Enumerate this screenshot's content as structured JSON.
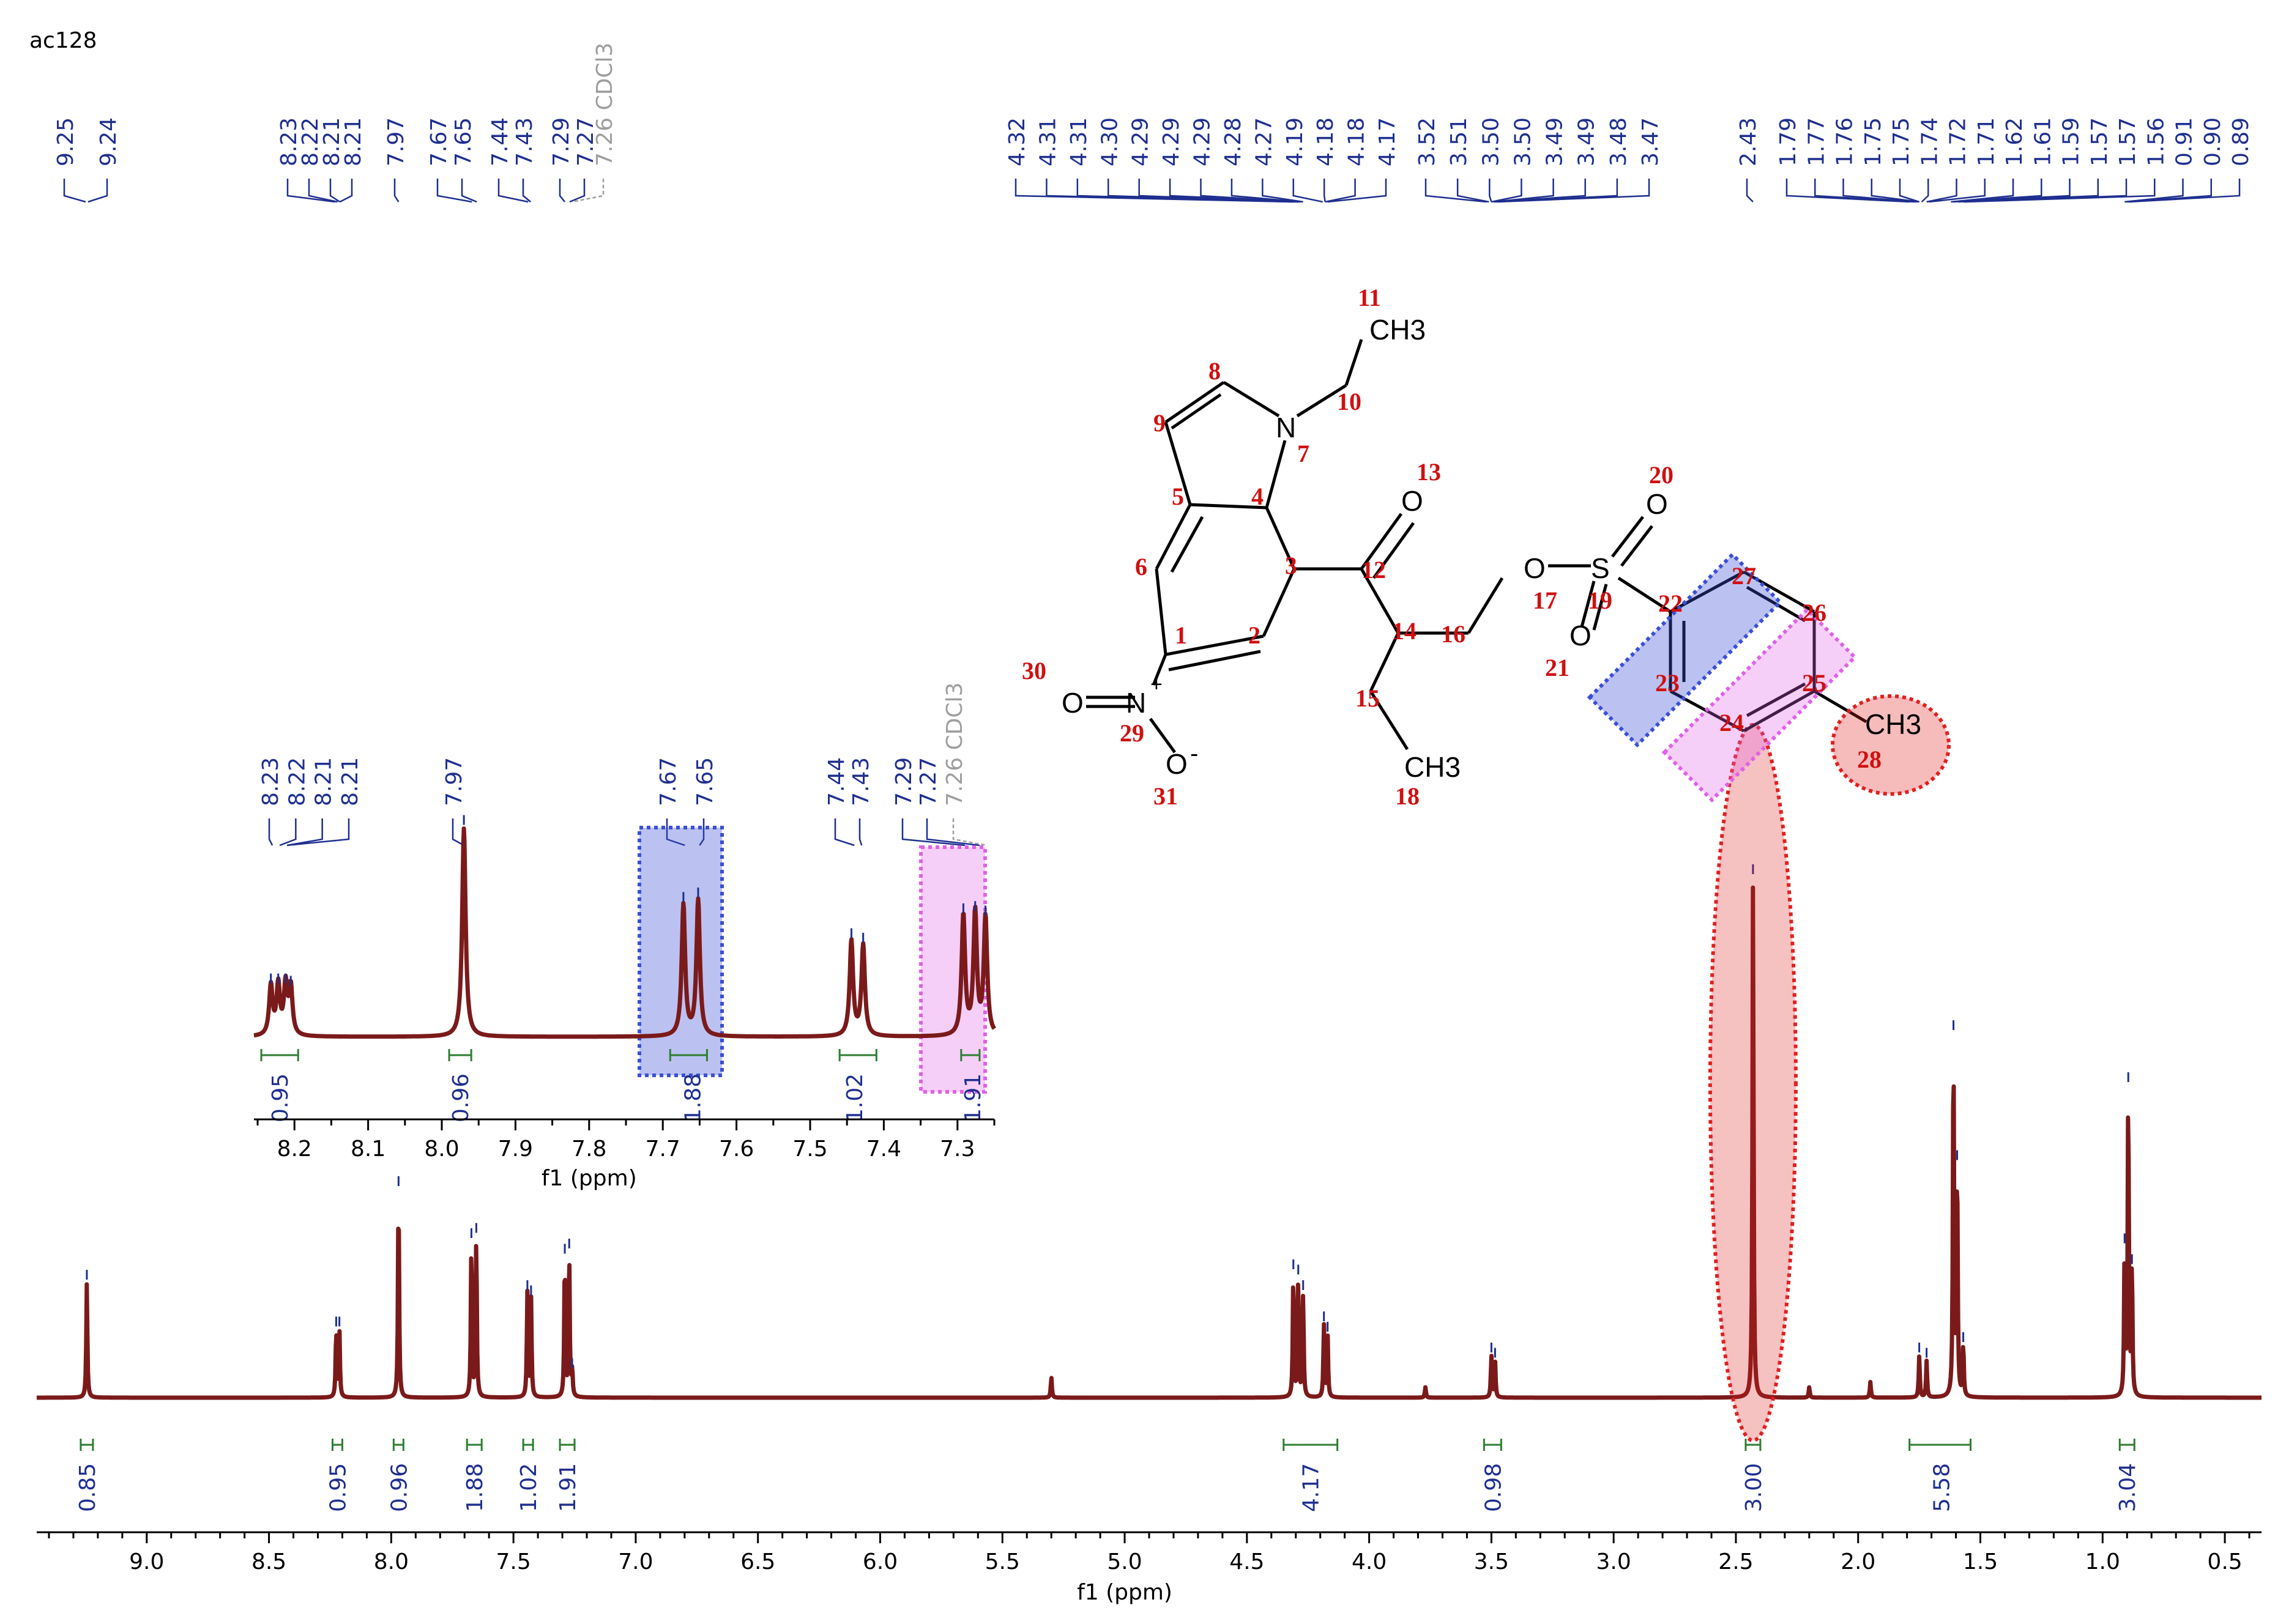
{
  "sample_id": "ac128",
  "solvent_label": "7.26 CDCl3",
  "colors": {
    "spectrum": "#7b1a1a",
    "peak_label": "#1f2f8f",
    "integral_line": "#2e7d32",
    "integral_value": "#1f2f8f",
    "atom_number": "#d01010",
    "solvent": "#9e9e9e",
    "highlight_blue": "#3b4fd6",
    "highlight_pink": "#e060e8",
    "highlight_red": "#e02020"
  },
  "chart_data": [
    {
      "type": "line",
      "title": "",
      "xlabel": "f1 (ppm)",
      "x_reversed": true,
      "xlim": [
        9.45,
        0.35
      ],
      "xticks": [
        "9.0",
        "8.5",
        "8.0",
        "7.5",
        "7.0",
        "6.5",
        "6.0",
        "5.5",
        "5.0",
        "4.5",
        "4.0",
        "3.5",
        "3.0",
        "2.5",
        "2.0",
        "1.5",
        "1.0",
        "0.5"
      ],
      "peak_labels": [
        "9.25",
        "9.24",
        "8.23",
        "8.22",
        "8.21",
        "8.21",
        "7.97",
        "7.67",
        "7.65",
        "7.44",
        "7.43",
        "7.29",
        "7.27",
        "4.32",
        "4.31",
        "4.31",
        "4.30",
        "4.29",
        "4.29",
        "4.29",
        "4.28",
        "4.27",
        "4.19",
        "4.18",
        "4.18",
        "4.17",
        "3.52",
        "3.51",
        "3.50",
        "3.50",
        "3.49",
        "3.49",
        "3.48",
        "3.47",
        "2.43",
        "1.79",
        "1.77",
        "1.76",
        "1.75",
        "1.75",
        "1.74",
        "1.72",
        "1.71",
        "1.62",
        "1.61",
        "1.59",
        "1.57",
        "1.57",
        "1.56",
        "0.91",
        "0.90",
        "0.89"
      ],
      "peaks": [
        {
          "ppm": 9.245,
          "height": 0.22
        },
        {
          "ppm": 8.225,
          "height": 0.13
        },
        {
          "ppm": 8.212,
          "height": 0.13
        },
        {
          "ppm": 7.97,
          "height": 0.4
        },
        {
          "ppm": 7.672,
          "height": 0.3
        },
        {
          "ppm": 7.652,
          "height": 0.31
        },
        {
          "ppm": 7.443,
          "height": 0.2
        },
        {
          "ppm": 7.428,
          "height": 0.19
        },
        {
          "ppm": 7.29,
          "height": 0.27
        },
        {
          "ppm": 7.272,
          "height": 0.28
        },
        {
          "ppm": 7.26,
          "height": 0.05
        },
        {
          "ppm": 5.3,
          "height": 0.04
        },
        {
          "ppm": 4.31,
          "height": 0.24
        },
        {
          "ppm": 4.29,
          "height": 0.23
        },
        {
          "ppm": 4.27,
          "height": 0.2
        },
        {
          "ppm": 4.185,
          "height": 0.14
        },
        {
          "ppm": 4.17,
          "height": 0.12
        },
        {
          "ppm": 3.77,
          "height": 0.02
        },
        {
          "ppm": 3.5,
          "height": 0.08
        },
        {
          "ppm": 3.485,
          "height": 0.07
        },
        {
          "ppm": 2.43,
          "height": 1.0
        },
        {
          "ppm": 2.2,
          "height": 0.02
        },
        {
          "ppm": 1.95,
          "height": 0.03
        },
        {
          "ppm": 1.75,
          "height": 0.08
        },
        {
          "ppm": 1.72,
          "height": 0.07
        },
        {
          "ppm": 1.61,
          "height": 0.7
        },
        {
          "ppm": 1.595,
          "height": 0.45
        },
        {
          "ppm": 1.57,
          "height": 0.1
        },
        {
          "ppm": 0.91,
          "height": 0.29
        },
        {
          "ppm": 0.895,
          "height": 0.6
        },
        {
          "ppm": 0.88,
          "height": 0.25
        }
      ],
      "integrals": [
        {
          "value": "0.85",
          "from": 9.27,
          "to": 9.22,
          "label_ppm": 9.245
        },
        {
          "value": "0.95",
          "from": 8.24,
          "to": 8.2,
          "label_ppm": 8.22
        },
        {
          "value": "0.96",
          "from": 7.99,
          "to": 7.95,
          "label_ppm": 7.97
        },
        {
          "value": "1.88",
          "from": 7.69,
          "to": 7.63,
          "label_ppm": 7.66
        },
        {
          "value": "1.02",
          "from": 7.46,
          "to": 7.42,
          "label_ppm": 7.44
        },
        {
          "value": "1.91",
          "from": 7.31,
          "to": 7.25,
          "label_ppm": 7.28
        },
        {
          "value": "4.17",
          "from": 4.35,
          "to": 4.13,
          "label_ppm": 4.24
        },
        {
          "value": "0.98",
          "from": 3.53,
          "to": 3.46,
          "label_ppm": 3.495
        },
        {
          "value": "3.00",
          "from": 2.46,
          "to": 2.4,
          "label_ppm": 2.43
        },
        {
          "value": "5.58",
          "from": 1.79,
          "to": 1.54,
          "label_ppm": 1.66
        },
        {
          "value": "3.04",
          "from": 0.93,
          "to": 0.87,
          "label_ppm": 0.9
        }
      ]
    },
    {
      "type": "line",
      "title": "",
      "xlabel": "f1 (ppm)",
      "x_reversed": true,
      "xlim": [
        8.25,
        7.25
      ],
      "xticks": [
        "8.2",
        "8.1",
        "8.0",
        "7.9",
        "7.8",
        "7.7",
        "7.6",
        "7.5",
        "7.4",
        "7.3"
      ],
      "peak_labels": [
        "8.23",
        "8.22",
        "8.21",
        "8.21",
        "7.97",
        "7.67",
        "7.65",
        "7.44",
        "7.43",
        "7.29",
        "7.27"
      ],
      "integrals": [
        {
          "value": "0.95",
          "from": 8.245,
          "to": 8.195,
          "label_ppm": 8.22
        },
        {
          "value": "0.96",
          "from": 7.99,
          "to": 7.96,
          "label_ppm": 7.975
        },
        {
          "value": "1.88",
          "from": 7.69,
          "to": 7.64,
          "label_ppm": 7.66
        },
        {
          "value": "1.02",
          "from": 7.46,
          "to": 7.41,
          "label_ppm": 7.44
        },
        {
          "value": "1.91",
          "from": 7.295,
          "to": 7.27,
          "label_ppm": 7.28
        }
      ]
    }
  ],
  "molecule": {
    "atom_numbers": [
      "1",
      "2",
      "3",
      "4",
      "5",
      "6",
      "7",
      "8",
      "9",
      "10",
      "11",
      "12",
      "13",
      "14",
      "15",
      "16",
      "17",
      "19",
      "20",
      "21",
      "22",
      "23",
      "24",
      "25",
      "26",
      "27",
      "18",
      "28",
      "29",
      "30",
      "31"
    ],
    "atom_symbols": {
      "CH3_11": "CH3",
      "N_7": "N",
      "O_13": "O",
      "O_16": "O",
      "S_19": "S",
      "O_20": "O",
      "O_21": "O",
      "CH3_28": "CH3",
      "N_29": "N",
      "O_30": "O",
      "O_31": "O",
      "CH3_18": "CH3",
      "plus": "+",
      "minus": "-"
    }
  }
}
